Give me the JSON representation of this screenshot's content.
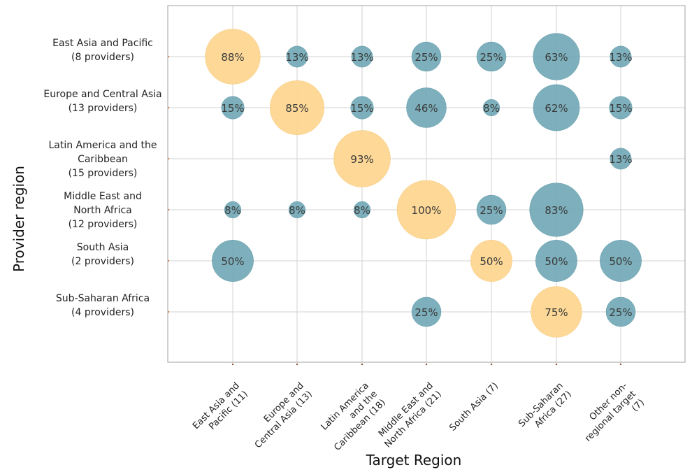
{
  "chart_data": {
    "type": "scatter",
    "subtype": "bubble",
    "title": "",
    "xlabel": "Target Region",
    "ylabel": "Provider region",
    "x_categories": [
      [
        "East Asia and",
        "Pacific (11)"
      ],
      [
        "Europe and",
        "Central Asia (13)"
      ],
      [
        "Latin America",
        "and the",
        "Caribbean (18)"
      ],
      [
        "Middle East and",
        "North Africa (21)"
      ],
      [
        "South Asia (7)"
      ],
      [
        "Sub-Saharan",
        "Africa (27)"
      ],
      [
        "Other non-",
        "regional target",
        "(7)"
      ]
    ],
    "y_categories": [
      [
        "East Asia and Pacific",
        "(8 providers)"
      ],
      [
        "Europe and Central Asia",
        "(13 providers)"
      ],
      [
        "Latin America and the",
        "Caribbean",
        "(15 providers)"
      ],
      [
        "Middle East and",
        "North Africa",
        "(12 providers)"
      ],
      [
        "South Asia",
        "(2 providers)"
      ],
      [
        "Sub-Saharan Africa",
        "(4 providers)"
      ]
    ],
    "colors": {
      "same_region": "#fdd691",
      "other_region": "#6fa7b5",
      "grid": "#d3d3d3",
      "axis": "#a0a0a0"
    },
    "grid": true,
    "points": [
      {
        "row": 0,
        "col": 0,
        "value": 88,
        "label": "88%",
        "same_region": true
      },
      {
        "row": 0,
        "col": 1,
        "value": 13,
        "label": "13%",
        "same_region": false
      },
      {
        "row": 0,
        "col": 2,
        "value": 13,
        "label": "13%",
        "same_region": false
      },
      {
        "row": 0,
        "col": 3,
        "value": 25,
        "label": "25%",
        "same_region": false
      },
      {
        "row": 0,
        "col": 4,
        "value": 25,
        "label": "25%",
        "same_region": false
      },
      {
        "row": 0,
        "col": 5,
        "value": 63,
        "label": "63%",
        "same_region": false
      },
      {
        "row": 0,
        "col": 6,
        "value": 13,
        "label": "13%",
        "same_region": false
      },
      {
        "row": 1,
        "col": 0,
        "value": 15,
        "label": "15%",
        "same_region": false
      },
      {
        "row": 1,
        "col": 1,
        "value": 85,
        "label": "85%",
        "same_region": true
      },
      {
        "row": 1,
        "col": 2,
        "value": 15,
        "label": "15%",
        "same_region": false
      },
      {
        "row": 1,
        "col": 3,
        "value": 46,
        "label": "46%",
        "same_region": false
      },
      {
        "row": 1,
        "col": 4,
        "value": 8,
        "label": "8%",
        "same_region": false
      },
      {
        "row": 1,
        "col": 5,
        "value": 62,
        "label": "62%",
        "same_region": false
      },
      {
        "row": 1,
        "col": 6,
        "value": 15,
        "label": "15%",
        "same_region": false
      },
      {
        "row": 2,
        "col": 2,
        "value": 93,
        "label": "93%",
        "same_region": true
      },
      {
        "row": 2,
        "col": 6,
        "value": 13,
        "label": "13%",
        "same_region": false
      },
      {
        "row": 3,
        "col": 0,
        "value": 8,
        "label": "8%",
        "same_region": false
      },
      {
        "row": 3,
        "col": 1,
        "value": 8,
        "label": "8%",
        "same_region": false
      },
      {
        "row": 3,
        "col": 2,
        "value": 8,
        "label": "8%",
        "same_region": false
      },
      {
        "row": 3,
        "col": 3,
        "value": 100,
        "label": "100%",
        "same_region": true
      },
      {
        "row": 3,
        "col": 4,
        "value": 25,
        "label": "25%",
        "same_region": false
      },
      {
        "row": 3,
        "col": 5,
        "value": 83,
        "label": "83%",
        "same_region": false
      },
      {
        "row": 4,
        "col": 0,
        "value": 50,
        "label": "50%",
        "same_region": false
      },
      {
        "row": 4,
        "col": 4,
        "value": 50,
        "label": "50%",
        "same_region": true
      },
      {
        "row": 4,
        "col": 5,
        "value": 50,
        "label": "50%",
        "same_region": false
      },
      {
        "row": 4,
        "col": 6,
        "value": 50,
        "label": "50%",
        "same_region": false
      },
      {
        "row": 5,
        "col": 3,
        "value": 25,
        "label": "25%",
        "same_region": false
      },
      {
        "row": 5,
        "col": 5,
        "value": 75,
        "label": "75%",
        "same_region": true
      },
      {
        "row": 5,
        "col": 6,
        "value": 25,
        "label": "25%",
        "same_region": false
      }
    ]
  }
}
